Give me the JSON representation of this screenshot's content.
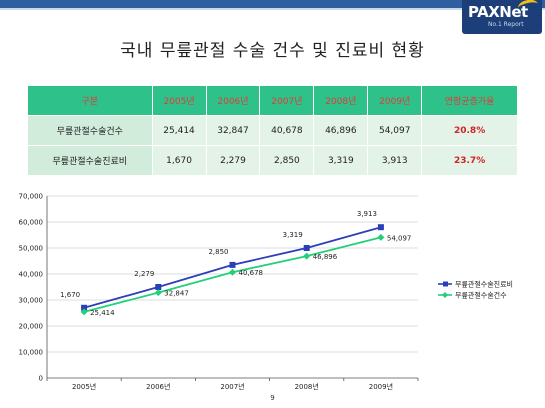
{
  "logo": {
    "main": "PAXNet",
    "sub": "No.1 Report"
  },
  "title": "국내 무릎관절 수술 건수 및 진료비 현황",
  "table": {
    "header": [
      "구분",
      "2005년",
      "2006년",
      "2007년",
      "2008년",
      "2009년",
      "연평균증가율"
    ],
    "rows": [
      {
        "label": "무릎관절수술건수",
        "values": [
          "25,414",
          "32,847",
          "40,678",
          "46,896",
          "54,097"
        ],
        "rate": "20.8%"
      },
      {
        "label": "무릎관절수술진료비",
        "values": [
          "1,670",
          "2,279",
          "2,850",
          "3,319",
          "3,913"
        ],
        "rate": "23.7%"
      }
    ]
  },
  "chart_data": {
    "type": "line",
    "categories": [
      "2005년",
      "2006년",
      "2007년",
      "2008년",
      "2009년"
    ],
    "ylim": [
      0,
      70000
    ],
    "yticks": [
      "0",
      "10,000",
      "20,000",
      "30,000",
      "40,000",
      "50,000",
      "60,000",
      "70,000"
    ],
    "ytick_values": [
      0,
      10000,
      20000,
      30000,
      40000,
      50000,
      60000,
      70000
    ],
    "grid": true,
    "legend_position": "right",
    "series": [
      {
        "name": "무릎관절수술진료비",
        "color": "#2a3fb8",
        "marker": "square",
        "values": [
          27000,
          35000,
          43500,
          50000,
          58000
        ],
        "labels": [
          "1,670",
          "2,279",
          "2,850",
          "3,319",
          "3,913"
        ]
      },
      {
        "name": "무릎관절수술건수",
        "color": "#22d07a",
        "marker": "diamond",
        "values": [
          25414,
          32847,
          40678,
          46896,
          54097
        ],
        "labels": [
          "25,414",
          "32,847",
          "40,678",
          "46,896",
          "54,097"
        ]
      }
    ]
  },
  "page_number": "9"
}
